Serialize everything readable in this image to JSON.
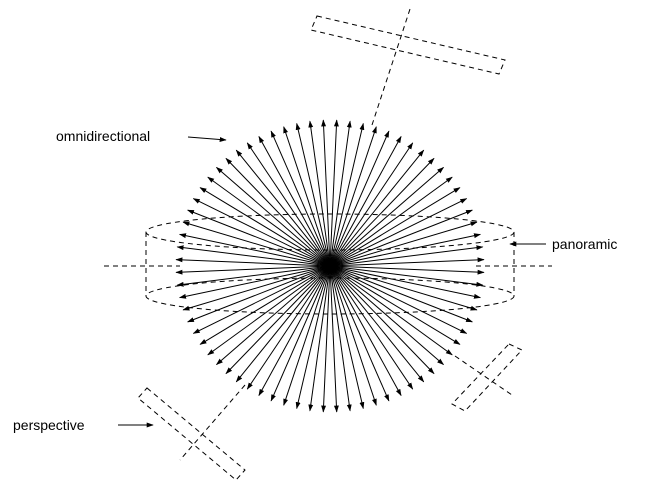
{
  "labels": {
    "omnidirectional": "omnidirectional",
    "panoramic": "panoramic",
    "perspective": "perspective"
  },
  "diagram": {
    "ray_count": 72,
    "line_color": "#000000",
    "dashed_style": "dashed"
  }
}
